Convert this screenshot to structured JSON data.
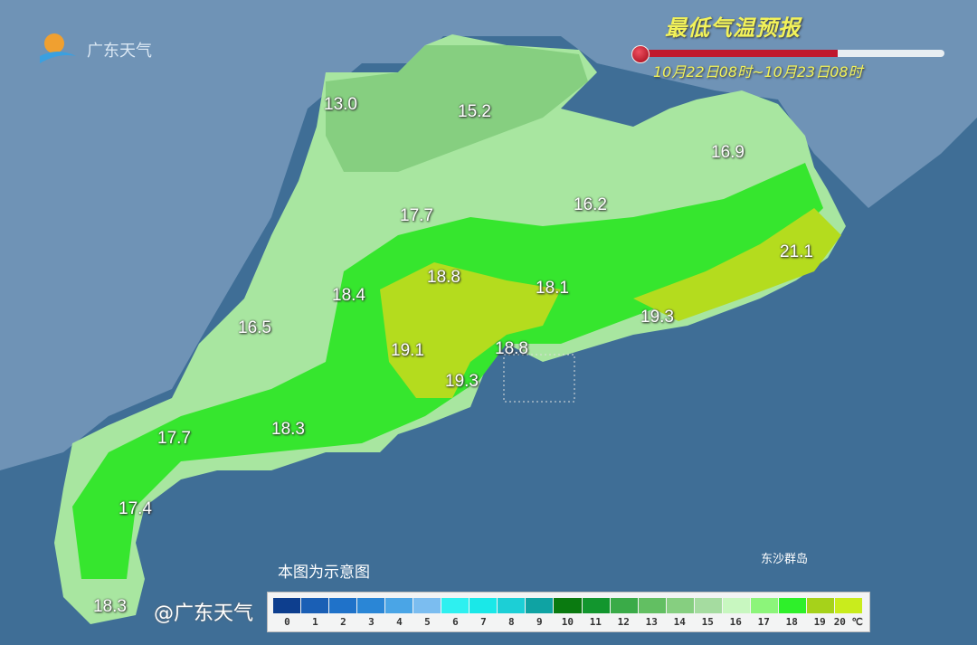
{
  "logo": {
    "text": "广东天气"
  },
  "header": {
    "title": "最低气温预报",
    "period": "10月22日08时~10月23日08时",
    "thermometer_fill_percent": 65
  },
  "map": {
    "values": [
      "13.0",
      "15.2",
      "16.9",
      "17.7",
      "16.2",
      "21.1",
      "18.8",
      "18.1",
      "18.4",
      "19.3",
      "16.5",
      "19.1",
      "18.8",
      "19.3",
      "17.7",
      "18.3",
      "17.4",
      "18.3"
    ],
    "island_label": "东沙群岛",
    "note": "本图为示意图",
    "colors": {
      "sea": "#3f6e96",
      "land_outside": "#6f93b6"
    }
  },
  "legend": {
    "labels": [
      "0",
      "1",
      "2",
      "3",
      "4",
      "5",
      "6",
      "7",
      "8",
      "9",
      "10",
      "11",
      "12",
      "13",
      "14",
      "15",
      "16",
      "17",
      "18",
      "19",
      "20 ℃"
    ],
    "colors": [
      "#0d3e8e",
      "#1a5fb5",
      "#1f72c9",
      "#2a86d6",
      "#4aa5e6",
      "#7bbdf0",
      "#2ef0f0",
      "#1ae8e8",
      "#1ccfd6",
      "#0fa3a3",
      "#0a7a10",
      "#12962e",
      "#3aab48",
      "#62bf62",
      "#86cf80",
      "#a5dca0",
      "#c8f7c0",
      "#8cf57a",
      "#2ef02a",
      "#a6d21a",
      "#c9ec1c"
    ]
  },
  "watermark": "@广东天气"
}
